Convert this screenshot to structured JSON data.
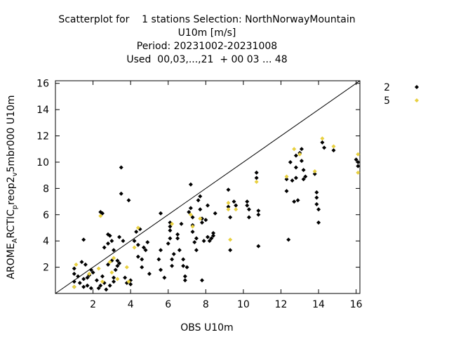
{
  "chart_data": {
    "type": "scatter",
    "title_lines": [
      "Scatterplot for    1 stations Selection: NorthNorwayMountain",
      "U10m [m/s]",
      "Period: 20231002-20231008",
      "Used  00,03,...,21  + 00 03 ... 48"
    ],
    "xlabel": "OBS U10m",
    "ylabel": "AROME_ARCTIC_preop2_v5mbr000 U10m",
    "xlim": [
      0,
      16.2
    ],
    "ylim": [
      0,
      16.2
    ],
    "x_ticks": [
      2,
      4,
      6,
      8,
      10,
      12,
      14,
      16
    ],
    "y_ticks": [
      2,
      4,
      6,
      8,
      10,
      12,
      14,
      16
    ],
    "diagonal": true,
    "legend_position": "outside-right-top",
    "series": [
      {
        "name": "2",
        "color": "#000000",
        "points": [
          [
            1.0,
            0.5
          ],
          [
            1.0,
            0.9
          ],
          [
            1.0,
            1.5
          ],
          [
            1.0,
            1.9
          ],
          [
            1.2,
            1.3
          ],
          [
            1.3,
            0.8
          ],
          [
            1.4,
            2.4
          ],
          [
            1.5,
            4.1
          ],
          [
            1.5,
            1.1
          ],
          [
            1.5,
            0.5
          ],
          [
            1.6,
            2.2
          ],
          [
            1.7,
            1.2
          ],
          [
            1.7,
            0.6
          ],
          [
            1.8,
            1.4
          ],
          [
            1.9,
            1.8
          ],
          [
            1.9,
            0.4
          ],
          [
            2.0,
            1.6
          ],
          [
            2.2,
            1.0
          ],
          [
            2.3,
            0.4
          ],
          [
            2.4,
            0.6
          ],
          [
            2.4,
            6.2
          ],
          [
            2.5,
            6.1
          ],
          [
            2.5,
            1.3
          ],
          [
            2.6,
            0.8
          ],
          [
            2.6,
            3.5
          ],
          [
            2.7,
            0.3
          ],
          [
            2.8,
            4.5
          ],
          [
            2.8,
            3.8
          ],
          [
            2.8,
            2.2
          ],
          [
            2.9,
            0.6
          ],
          [
            2.9,
            4.4
          ],
          [
            3.0,
            4.0
          ],
          [
            3.0,
            2.5
          ],
          [
            3.1,
            3.3
          ],
          [
            3.1,
            1.2
          ],
          [
            3.1,
            0.9
          ],
          [
            3.2,
            1.8
          ],
          [
            3.3,
            2.1
          ],
          [
            3.3,
            2.5
          ],
          [
            3.4,
            2.3
          ],
          [
            3.4,
            4.3
          ],
          [
            3.5,
            9.6
          ],
          [
            3.5,
            7.6
          ],
          [
            3.6,
            4.0
          ],
          [
            3.7,
            1.2
          ],
          [
            3.8,
            0.8
          ],
          [
            3.9,
            7.1
          ],
          [
            4.0,
            0.7
          ],
          [
            4.0,
            1.0
          ],
          [
            4.2,
            4.0
          ],
          [
            4.3,
            4.7
          ],
          [
            4.4,
            3.7
          ],
          [
            4.4,
            2.8
          ],
          [
            4.5,
            4.9
          ],
          [
            4.6,
            2.6
          ],
          [
            4.6,
            2.0
          ],
          [
            4.7,
            3.5
          ],
          [
            4.8,
            3.3
          ],
          [
            4.9,
            3.9
          ],
          [
            5.0,
            1.5
          ],
          [
            5.5,
            2.6
          ],
          [
            5.6,
            6.1
          ],
          [
            5.6,
            3.3
          ],
          [
            5.6,
            1.8
          ],
          [
            5.8,
            1.2
          ],
          [
            6.0,
            3.8
          ],
          [
            6.1,
            5.4
          ],
          [
            6.1,
            5.1
          ],
          [
            6.1,
            4.8
          ],
          [
            6.1,
            4.2
          ],
          [
            6.2,
            2.6
          ],
          [
            6.2,
            2.1
          ],
          [
            6.3,
            3.0
          ],
          [
            6.5,
            4.5
          ],
          [
            6.5,
            4.2
          ],
          [
            6.6,
            3.3
          ],
          [
            6.7,
            5.3
          ],
          [
            6.8,
            2.6
          ],
          [
            6.8,
            2.1
          ],
          [
            6.9,
            1.3
          ],
          [
            6.9,
            1.0
          ],
          [
            7.0,
            2.0
          ],
          [
            7.1,
            6.2
          ],
          [
            7.2,
            8.3
          ],
          [
            7.2,
            6.5
          ],
          [
            7.3,
            5.8
          ],
          [
            7.3,
            5.2
          ],
          [
            7.3,
            4.7
          ],
          [
            7.4,
            3.9
          ],
          [
            7.5,
            4.2
          ],
          [
            7.5,
            3.3
          ],
          [
            7.6,
            7.1
          ],
          [
            7.7,
            7.4
          ],
          [
            7.7,
            6.4
          ],
          [
            7.8,
            5.7
          ],
          [
            7.8,
            5.4
          ],
          [
            7.8,
            1.0
          ],
          [
            7.9,
            4.0
          ],
          [
            8.0,
            5.6
          ],
          [
            8.1,
            6.7
          ],
          [
            8.1,
            4.3
          ],
          [
            8.2,
            4.0
          ],
          [
            8.3,
            4.2
          ],
          [
            8.4,
            4.4
          ],
          [
            8.4,
            4.6
          ],
          [
            8.5,
            6.1
          ],
          [
            9.2,
            7.9
          ],
          [
            9.2,
            6.6
          ],
          [
            9.3,
            5.8
          ],
          [
            9.3,
            3.3
          ],
          [
            9.5,
            7.0
          ],
          [
            9.6,
            6.7
          ],
          [
            10.2,
            7.0
          ],
          [
            10.2,
            6.7
          ],
          [
            10.3,
            6.4
          ],
          [
            10.3,
            5.8
          ],
          [
            10.7,
            9.2
          ],
          [
            10.7,
            8.8
          ],
          [
            10.8,
            6.3
          ],
          [
            10.8,
            6.0
          ],
          [
            10.8,
            3.6
          ],
          [
            12.3,
            8.7
          ],
          [
            12.3,
            7.8
          ],
          [
            12.4,
            4.1
          ],
          [
            12.5,
            10.0
          ],
          [
            12.6,
            8.6
          ],
          [
            12.7,
            7.0
          ],
          [
            12.8,
            10.5
          ],
          [
            12.8,
            9.6
          ],
          [
            12.8,
            8.8
          ],
          [
            12.9,
            7.1
          ],
          [
            13.0,
            10.7
          ],
          [
            13.1,
            11.0
          ],
          [
            13.1,
            10.1
          ],
          [
            13.2,
            9.4
          ],
          [
            13.2,
            8.7
          ],
          [
            13.3,
            8.9
          ],
          [
            13.8,
            9.1
          ],
          [
            13.9,
            7.7
          ],
          [
            13.9,
            7.3
          ],
          [
            13.9,
            6.8
          ],
          [
            14.0,
            6.4
          ],
          [
            14.0,
            5.4
          ],
          [
            14.2,
            11.5
          ],
          [
            14.3,
            11.1
          ],
          [
            14.8,
            10.9
          ],
          [
            16.0,
            10.2
          ],
          [
            16.1,
            10.0
          ],
          [
            16.1,
            9.7
          ]
        ]
      },
      {
        "name": "5",
        "color": "#e8d040",
        "points": [
          [
            1.0,
            0.5
          ],
          [
            1.1,
            2.2
          ],
          [
            1.8,
            1.5
          ],
          [
            2.3,
            1.9
          ],
          [
            2.4,
            5.9
          ],
          [
            2.5,
            0.9
          ],
          [
            2.9,
            2.4
          ],
          [
            3.0,
            1.6
          ],
          [
            3.1,
            2.7
          ],
          [
            3.3,
            1.1
          ],
          [
            3.8,
            2.0
          ],
          [
            3.9,
            0.9
          ],
          [
            4.2,
            3.5
          ],
          [
            4.4,
            5.0
          ],
          [
            6.2,
            5.3
          ],
          [
            7.2,
            6.0
          ],
          [
            7.3,
            5.1
          ],
          [
            7.7,
            5.7
          ],
          [
            9.2,
            6.9
          ],
          [
            9.2,
            6.4
          ],
          [
            9.3,
            4.1
          ],
          [
            9.6,
            6.4
          ],
          [
            10.7,
            8.5
          ],
          [
            12.3,
            8.9
          ],
          [
            12.7,
            11.0
          ],
          [
            13.0,
            10.6
          ],
          [
            13.8,
            9.3
          ],
          [
            14.2,
            11.8
          ],
          [
            14.8,
            11.2
          ],
          [
            16.1,
            10.6
          ],
          [
            16.1,
            9.2
          ]
        ]
      }
    ]
  }
}
